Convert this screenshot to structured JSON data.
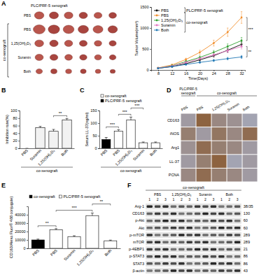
{
  "panel_labels": [
    "A",
    "B",
    "C",
    "D",
    "E",
    "F"
  ],
  "tumor_photos": {
    "top_label": "PLC/PRF-5 xenograft",
    "side_label": "co-xenograft",
    "rows": [
      "PBS",
      "PBS",
      "1,25(OH)₂D₃",
      "Suramin",
      "Both"
    ]
  },
  "chart_data": [
    {
      "type": "line",
      "x": [
        8,
        12,
        16,
        20,
        24,
        28,
        32
      ],
      "xlim": [
        6,
        33
      ],
      "xticks": [
        8,
        12,
        16,
        20,
        24,
        28,
        32
      ],
      "ylim": [
        0,
        1500
      ],
      "yticks": [
        0,
        500,
        1000,
        1500
      ],
      "x_label": "Time(Days)",
      "y_label": "Tumor Volume(mm³)",
      "legend": "top-left",
      "series": [
        {
          "name": "PBS",
          "group": "PLC/PRF-5 xenograft",
          "color": "#000000",
          "marker": "circle",
          "values": [
            40,
            80,
            150,
            240,
            340,
            470,
            610
          ],
          "errors": [
            8,
            12,
            18,
            25,
            35,
            45,
            60
          ]
        },
        {
          "name": "PBS",
          "group": "co-xenograft",
          "color": "#f28e2b",
          "marker": "circle",
          "values": [
            50,
            120,
            250,
            420,
            640,
            900,
            1250
          ],
          "errors": [
            10,
            18,
            30,
            50,
            70,
            100,
            140
          ]
        },
        {
          "name": "1,25(OH)₂D₃",
          "group": "co-xenograft",
          "color": "#2ca02c",
          "marker": "circle",
          "values": [
            45,
            100,
            200,
            300,
            420,
            560,
            700
          ],
          "errors": [
            8,
            15,
            25,
            35,
            45,
            60,
            75
          ]
        },
        {
          "name": "Suramin",
          "group": "co-xenograft",
          "color": "#e377c2",
          "marker": "circle",
          "values": [
            45,
            95,
            180,
            270,
            360,
            460,
            560
          ],
          "errors": [
            8,
            14,
            22,
            30,
            40,
            50,
            60
          ]
        },
        {
          "name": "Both",
          "group": "co-xenograft",
          "color": "#1f77b4",
          "marker": "circle",
          "values": [
            40,
            80,
            130,
            180,
            225,
            270,
            310
          ],
          "errors": [
            6,
            10,
            15,
            20,
            25,
            30,
            35
          ]
        }
      ],
      "annotations": [
        {
          "text": "***",
          "between": [
            1,
            2
          ]
        },
        {
          "text": "**",
          "between": [
            3,
            4
          ]
        }
      ]
    },
    {
      "type": "bar",
      "categories": [
        "PBS",
        "Suramin",
        "1,25(OH)₂D₃",
        "Both"
      ],
      "values": [
        0,
        55,
        45,
        75
      ],
      "errors": [
        0,
        3,
        5,
        4
      ],
      "color": "#f2f2f2",
      "ylim": [
        0,
        100
      ],
      "yticks": [
        0,
        20,
        40,
        60,
        80,
        100
      ],
      "y_label": "Inhibition rate(%)",
      "x_label": "co-xenograft",
      "annotations": [
        {
          "text": "**",
          "between": [
            2,
            3
          ]
        }
      ]
    },
    {
      "type": "bar",
      "stacked": true,
      "categories": [
        "PBS",
        "PBS",
        "1,25(OH)₂D₃",
        "Suramin",
        "Both"
      ],
      "series": [
        {
          "name": "co-xenograft",
          "color": "#ffffff",
          "values": [
            null,
            68,
            112,
            22,
            22
          ],
          "errors": [
            null,
            6,
            12,
            3,
            3
          ]
        },
        {
          "name": "PLC/PRF-5 xenograft",
          "color": "#000000",
          "values": [
            35,
            null,
            null,
            null,
            null
          ],
          "errors": [
            8,
            null,
            null,
            null,
            null
          ]
        }
      ],
      "ylim": [
        0,
        150
      ],
      "yticks": [
        0,
        50,
        100,
        150
      ],
      "y_label": "Serum LL-37(ng/ml)",
      "x_label": "co-xenograft",
      "legend": "top-left",
      "annotations": [
        {
          "text": "***",
          "between": [
            0,
            1
          ]
        },
        {
          "text": "***",
          "between": [
            1,
            2
          ]
        },
        {
          "text": "***",
          "between": [
            2,
            3
          ]
        }
      ]
    },
    {
      "type": "bar",
      "stacked": true,
      "categories": [
        "PBS",
        "PBS",
        "Suramin",
        "1,25(OH)₂D₃",
        "Both"
      ],
      "series": [
        {
          "name": "co-xenograft",
          "color": "#000000",
          "values": [
            10000,
            null,
            null,
            null,
            null
          ],
          "errors": [
            1000,
            null,
            null,
            null,
            null
          ]
        },
        {
          "name": "PLC/PRF-5 xenograft",
          "color": "#ffffff",
          "values": [
            null,
            22000,
            14000,
            39000,
            9000
          ],
          "errors": [
            null,
            1500,
            1000,
            3000,
            800
          ]
        }
      ],
      "ylim": [
        0,
        50000
      ],
      "yticks": [
        0,
        10000,
        20000,
        30000,
        40000
      ],
      "y_label": "CD163/Alexa Fluor® 488 conjugate)",
      "legend": "top-left",
      "annotations": [
        {
          "text": "**",
          "between": [
            0,
            1
          ]
        },
        {
          "text": "***",
          "between": [
            1,
            3
          ]
        },
        {
          "text": "**",
          "between": [
            3,
            4
          ]
        }
      ]
    }
  ],
  "ihc": {
    "group_labels": [
      {
        "lines": [
          "PLC/PRF-5",
          "xenograft"
        ],
        "columns": 1
      },
      {
        "lines": [
          "co-xenograft"
        ],
        "columns": 4
      }
    ],
    "columns": [
      "PBS",
      "PBS",
      "1,25(OH)₂D₃",
      "Suramin",
      "Both"
    ],
    "rows": [
      "CD163",
      "iNOS",
      "Arg1",
      "LL-37",
      "PCNA"
    ]
  },
  "western_blot": {
    "header": "co-xenograft",
    "groups": [
      "PBS",
      "1,25(OH)₂D₃",
      "Suramin",
      "Both"
    ],
    "lanes": [
      "1",
      "2",
      "3"
    ],
    "rows": [
      {
        "label": "Arg-1",
        "kda": "38/35"
      },
      {
        "label": "CD163",
        "kda": 130
      },
      {
        "label": "p-Akt",
        "kda": 60
      },
      {
        "label": "Akt",
        "kda": 60
      },
      {
        "label": "p-mTOR",
        "kda": 289
      },
      {
        "label": "mTOR",
        "kda": 289
      },
      {
        "label": "p-4EBP1",
        "kda": 21
      },
      {
        "label": "p-STAT3",
        "kda": 86
      },
      {
        "label": "STAT3",
        "kda": 86
      },
      {
        "label": "β-actin",
        "kda": 43
      }
    ]
  }
}
